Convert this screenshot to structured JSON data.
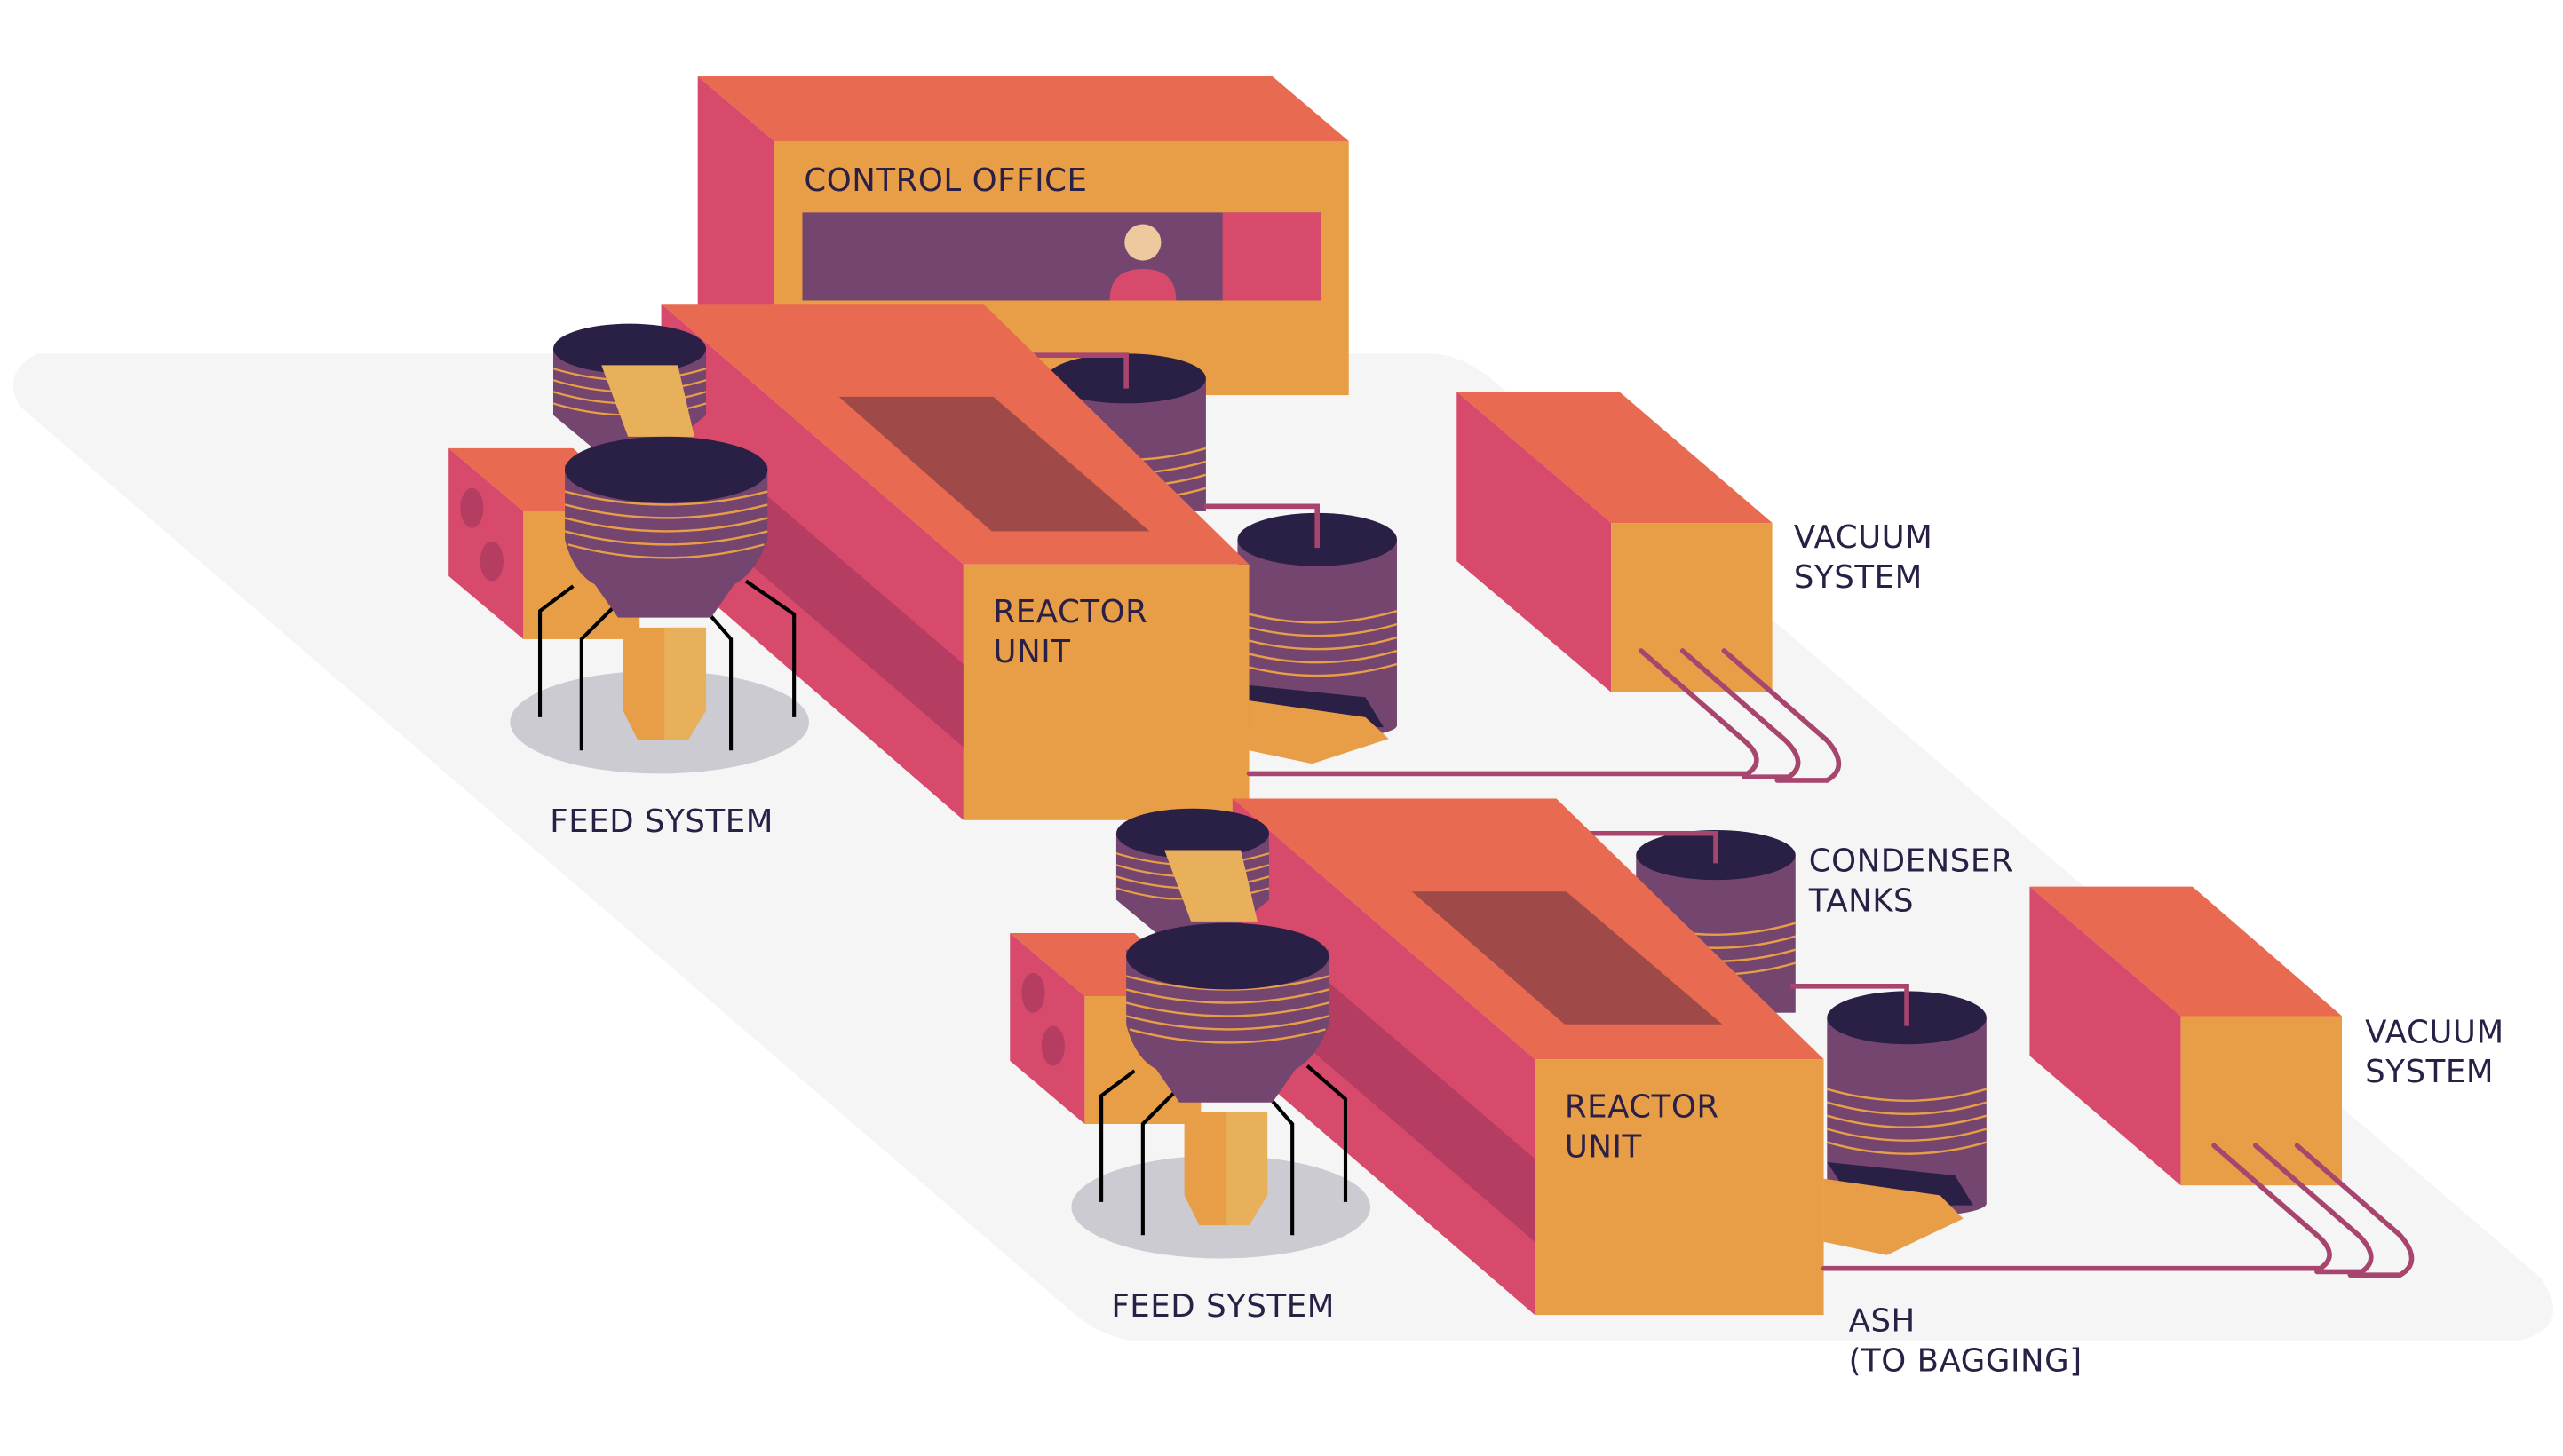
{
  "labels": {
    "control_office": "CONTROL OFFICE",
    "reactor_unit_1": [
      "REACTOR",
      "UNIT"
    ],
    "reactor_unit_2": [
      "REACTOR",
      "UNIT"
    ],
    "feed_system_1": "FEED SYSTEM",
    "feed_system_2": "FEED SYSTEM",
    "vacuum_system_1": [
      "VACUUM",
      "SYSTEM"
    ],
    "vacuum_system_2": [
      "VACUUM",
      "SYSTEM"
    ],
    "condenser_tanks": [
      "CONDENSER",
      "TANKS"
    ],
    "ash": [
      "ASH",
      "(TO BAGGING]"
    ]
  },
  "colors": {
    "top_face": "#e86a50",
    "front_face": "#e89e47",
    "side_face": "#d74a6c",
    "side_shadow": "#b53d62",
    "tank_body": "#74456e",
    "tank_top": "#2a1f45",
    "tank_ring": "#e89e47",
    "pipe": "#a8456e",
    "screen": "#74456e",
    "floor": "#f5f5f6",
    "hopper_shadow": "#cccbd2",
    "label_text": "#2a1f45"
  }
}
